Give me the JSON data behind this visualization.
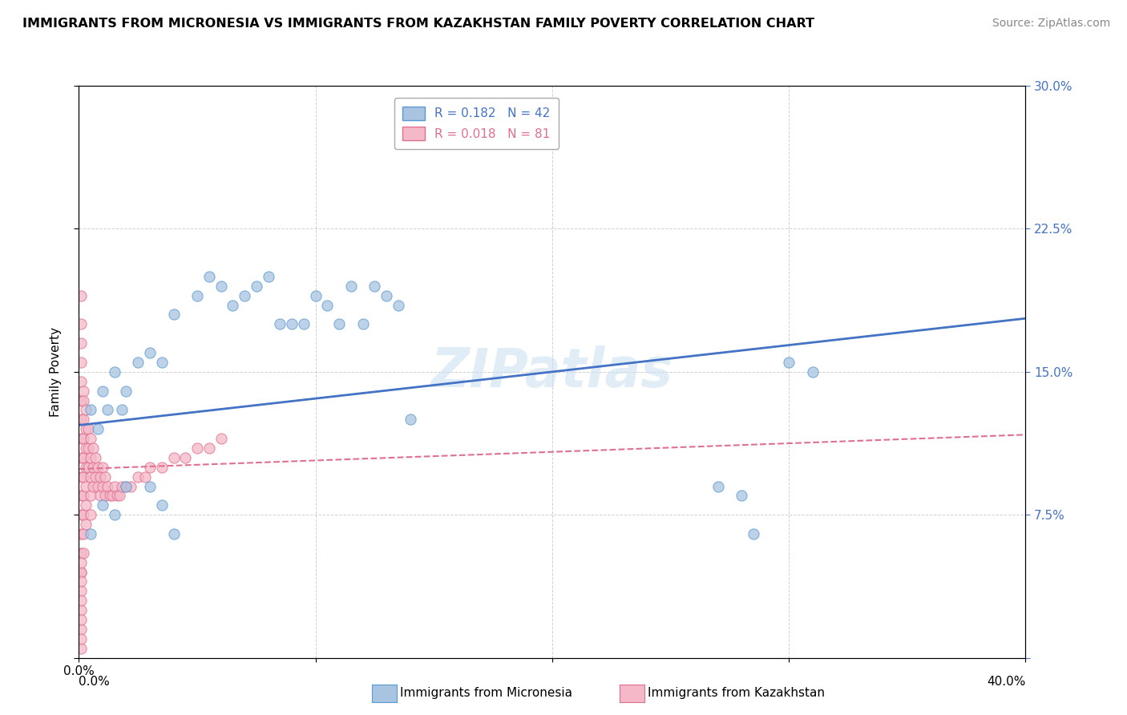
{
  "title": "IMMIGRANTS FROM MICRONESIA VS IMMIGRANTS FROM KAZAKHSTAN FAMILY POVERTY CORRELATION CHART",
  "source": "Source: ZipAtlas.com",
  "ylabel": "Family Poverty",
  "x_min": 0.0,
  "x_max": 0.4,
  "y_min": 0.0,
  "y_max": 0.3,
  "micronesia_color": "#a8c4e0",
  "micronesia_edge": "#5b9bd5",
  "kazakhstan_color": "#f4b8c8",
  "kazakhstan_edge": "#e07090",
  "micronesia_R": 0.182,
  "micronesia_N": 42,
  "kazakhstan_R": 0.018,
  "kazakhstan_N": 81,
  "legend_label_micronesia": "Immigrants from Micronesia",
  "legend_label_kazakhstan": "Immigrants from Kazakhstan",
  "watermark": "ZIPatlas",
  "micronesia_line_color": "#4472c4",
  "kazakhstan_line_color": "#e07090",
  "mic_line_start_y": 0.122,
  "mic_line_end_y": 0.178,
  "kaz_line_start_y": 0.099,
  "kaz_line_end_y": 0.117,
  "micronesia_x": [
    0.005,
    0.008,
    0.01,
    0.012,
    0.015,
    0.018,
    0.02,
    0.025,
    0.03,
    0.035,
    0.04,
    0.05,
    0.055,
    0.06,
    0.065,
    0.07,
    0.075,
    0.08,
    0.085,
    0.09,
    0.095,
    0.1,
    0.105,
    0.11,
    0.115,
    0.12,
    0.125,
    0.13,
    0.135,
    0.14,
    0.03,
    0.035,
    0.04,
    0.27,
    0.28,
    0.285,
    0.3,
    0.31,
    0.005,
    0.01,
    0.015,
    0.02
  ],
  "micronesia_y": [
    0.13,
    0.12,
    0.14,
    0.13,
    0.15,
    0.13,
    0.14,
    0.155,
    0.16,
    0.155,
    0.18,
    0.19,
    0.2,
    0.195,
    0.185,
    0.19,
    0.195,
    0.2,
    0.175,
    0.175,
    0.175,
    0.19,
    0.185,
    0.175,
    0.195,
    0.175,
    0.195,
    0.19,
    0.185,
    0.125,
    0.09,
    0.08,
    0.065,
    0.09,
    0.085,
    0.065,
    0.155,
    0.15,
    0.065,
    0.08,
    0.075,
    0.09
  ],
  "kazakhstan_x": [
    0.001,
    0.001,
    0.001,
    0.001,
    0.001,
    0.001,
    0.001,
    0.001,
    0.001,
    0.001,
    0.001,
    0.001,
    0.001,
    0.001,
    0.001,
    0.002,
    0.002,
    0.002,
    0.002,
    0.002,
    0.002,
    0.002,
    0.002,
    0.002,
    0.002,
    0.003,
    0.003,
    0.003,
    0.003,
    0.003,
    0.003,
    0.003,
    0.004,
    0.004,
    0.004,
    0.005,
    0.005,
    0.005,
    0.005,
    0.005,
    0.006,
    0.006,
    0.006,
    0.007,
    0.007,
    0.008,
    0.008,
    0.009,
    0.009,
    0.01,
    0.01,
    0.011,
    0.011,
    0.012,
    0.013,
    0.014,
    0.015,
    0.016,
    0.017,
    0.018,
    0.02,
    0.022,
    0.025,
    0.028,
    0.03,
    0.035,
    0.04,
    0.045,
    0.05,
    0.055,
    0.06,
    0.001,
    0.001,
    0.001,
    0.001,
    0.001,
    0.001,
    0.001,
    0.001,
    0.001,
    0.001
  ],
  "kazakhstan_y": [
    0.19,
    0.175,
    0.165,
    0.155,
    0.145,
    0.135,
    0.125,
    0.115,
    0.105,
    0.095,
    0.085,
    0.075,
    0.065,
    0.055,
    0.045,
    0.14,
    0.135,
    0.125,
    0.115,
    0.105,
    0.095,
    0.085,
    0.075,
    0.065,
    0.055,
    0.13,
    0.12,
    0.11,
    0.1,
    0.09,
    0.08,
    0.07,
    0.12,
    0.11,
    0.1,
    0.115,
    0.105,
    0.095,
    0.085,
    0.075,
    0.11,
    0.1,
    0.09,
    0.105,
    0.095,
    0.1,
    0.09,
    0.095,
    0.085,
    0.1,
    0.09,
    0.095,
    0.085,
    0.09,
    0.085,
    0.085,
    0.09,
    0.085,
    0.085,
    0.09,
    0.09,
    0.09,
    0.095,
    0.095,
    0.1,
    0.1,
    0.105,
    0.105,
    0.11,
    0.11,
    0.115,
    0.035,
    0.025,
    0.015,
    0.005,
    0.045,
    0.03,
    0.02,
    0.01,
    0.04,
    0.05
  ]
}
